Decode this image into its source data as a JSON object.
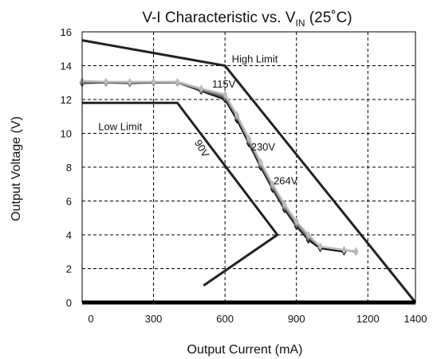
{
  "chart_data": {
    "type": "line",
    "title": {
      "main": "V-I Characteristic vs. V",
      "sub": "IN",
      "suffix": " (25˚C)"
    },
    "xlabel": "Output Current (mA)",
    "ylabel": "Output Voltage (V)",
    "xlim": [
      0,
      1400
    ],
    "ylim": [
      0,
      16
    ],
    "x_ticks": [
      0,
      300,
      600,
      900,
      1200,
      1400
    ],
    "x_tick_labels": [
      "0",
      "300",
      "600",
      "900",
      "1200",
      "1400"
    ],
    "y_ticks": [
      0,
      2,
      4,
      6,
      8,
      10,
      12,
      14,
      16
    ],
    "y_tick_labels": [
      "0",
      "2",
      "4",
      "6",
      "8",
      "10",
      "12",
      "14",
      "16"
    ],
    "grid": true,
    "limits": [
      {
        "name": "High Limit",
        "x": [
          0,
          600,
          1400
        ],
        "y": [
          15.5,
          14,
          0
        ]
      },
      {
        "name": "Low Limit",
        "x": [
          0,
          400,
          820,
          510
        ],
        "y": [
          11.8,
          11.8,
          4,
          1
        ]
      }
    ],
    "series": [
      {
        "name": "90V",
        "color": "#111111",
        "x": [
          0,
          100,
          200,
          300,
          400,
          500,
          600,
          650,
          700,
          750,
          800,
          850,
          900,
          950,
          1000,
          1100
        ],
        "y": [
          13,
          13,
          13,
          13,
          13,
          12.5,
          12,
          10.8,
          9.4,
          8,
          6.7,
          5.5,
          4.5,
          3.7,
          3.2,
          3
        ]
      },
      {
        "name": "115V",
        "color": "#555555",
        "x": [
          0,
          100,
          200,
          300,
          400,
          500,
          600,
          650,
          700,
          750,
          800,
          850,
          900,
          950,
          1000,
          1100
        ],
        "y": [
          12.95,
          13,
          12.95,
          13,
          13,
          12.55,
          12.1,
          10.95,
          9.5,
          8.1,
          6.8,
          5.6,
          4.6,
          3.8,
          3.3,
          3.1
        ]
      },
      {
        "name": "230V",
        "color": "#888888",
        "x": [
          0,
          100,
          200,
          300,
          400,
          500,
          600,
          650,
          700,
          750,
          800,
          850,
          900,
          950,
          1000,
          1100,
          1150
        ],
        "y": [
          13.05,
          13.05,
          13,
          13.05,
          13,
          12.6,
          12.2,
          11,
          9.6,
          8.2,
          6.9,
          5.7,
          4.7,
          3.9,
          3.3,
          3.1,
          3
        ]
      },
      {
        "name": "264V",
        "color": "#bbbbbb",
        "x": [
          0,
          100,
          200,
          300,
          400,
          500,
          600,
          650,
          700,
          750,
          800,
          850,
          900,
          950,
          1000,
          1100,
          1150
        ],
        "y": [
          13.1,
          13.05,
          13.05,
          13.05,
          13.05,
          12.65,
          12.3,
          11.1,
          9.7,
          8.3,
          7,
          5.8,
          4.8,
          4,
          3.3,
          3.1,
          3.05
        ]
      }
    ],
    "annotations": [
      {
        "text": "High Limit",
        "x": 725,
        "y": 14.2
      },
      {
        "text": "Low Limit",
        "x": 160,
        "y": 10.2
      },
      {
        "text": "115V",
        "x": 595,
        "y": 12.7
      },
      {
        "text": "90V",
        "x": 490,
        "y": 9.0
      },
      {
        "text": "230V",
        "x": 760,
        "y": 9.0
      },
      {
        "text": "264V",
        "x": 855,
        "y": 7.0
      }
    ]
  }
}
